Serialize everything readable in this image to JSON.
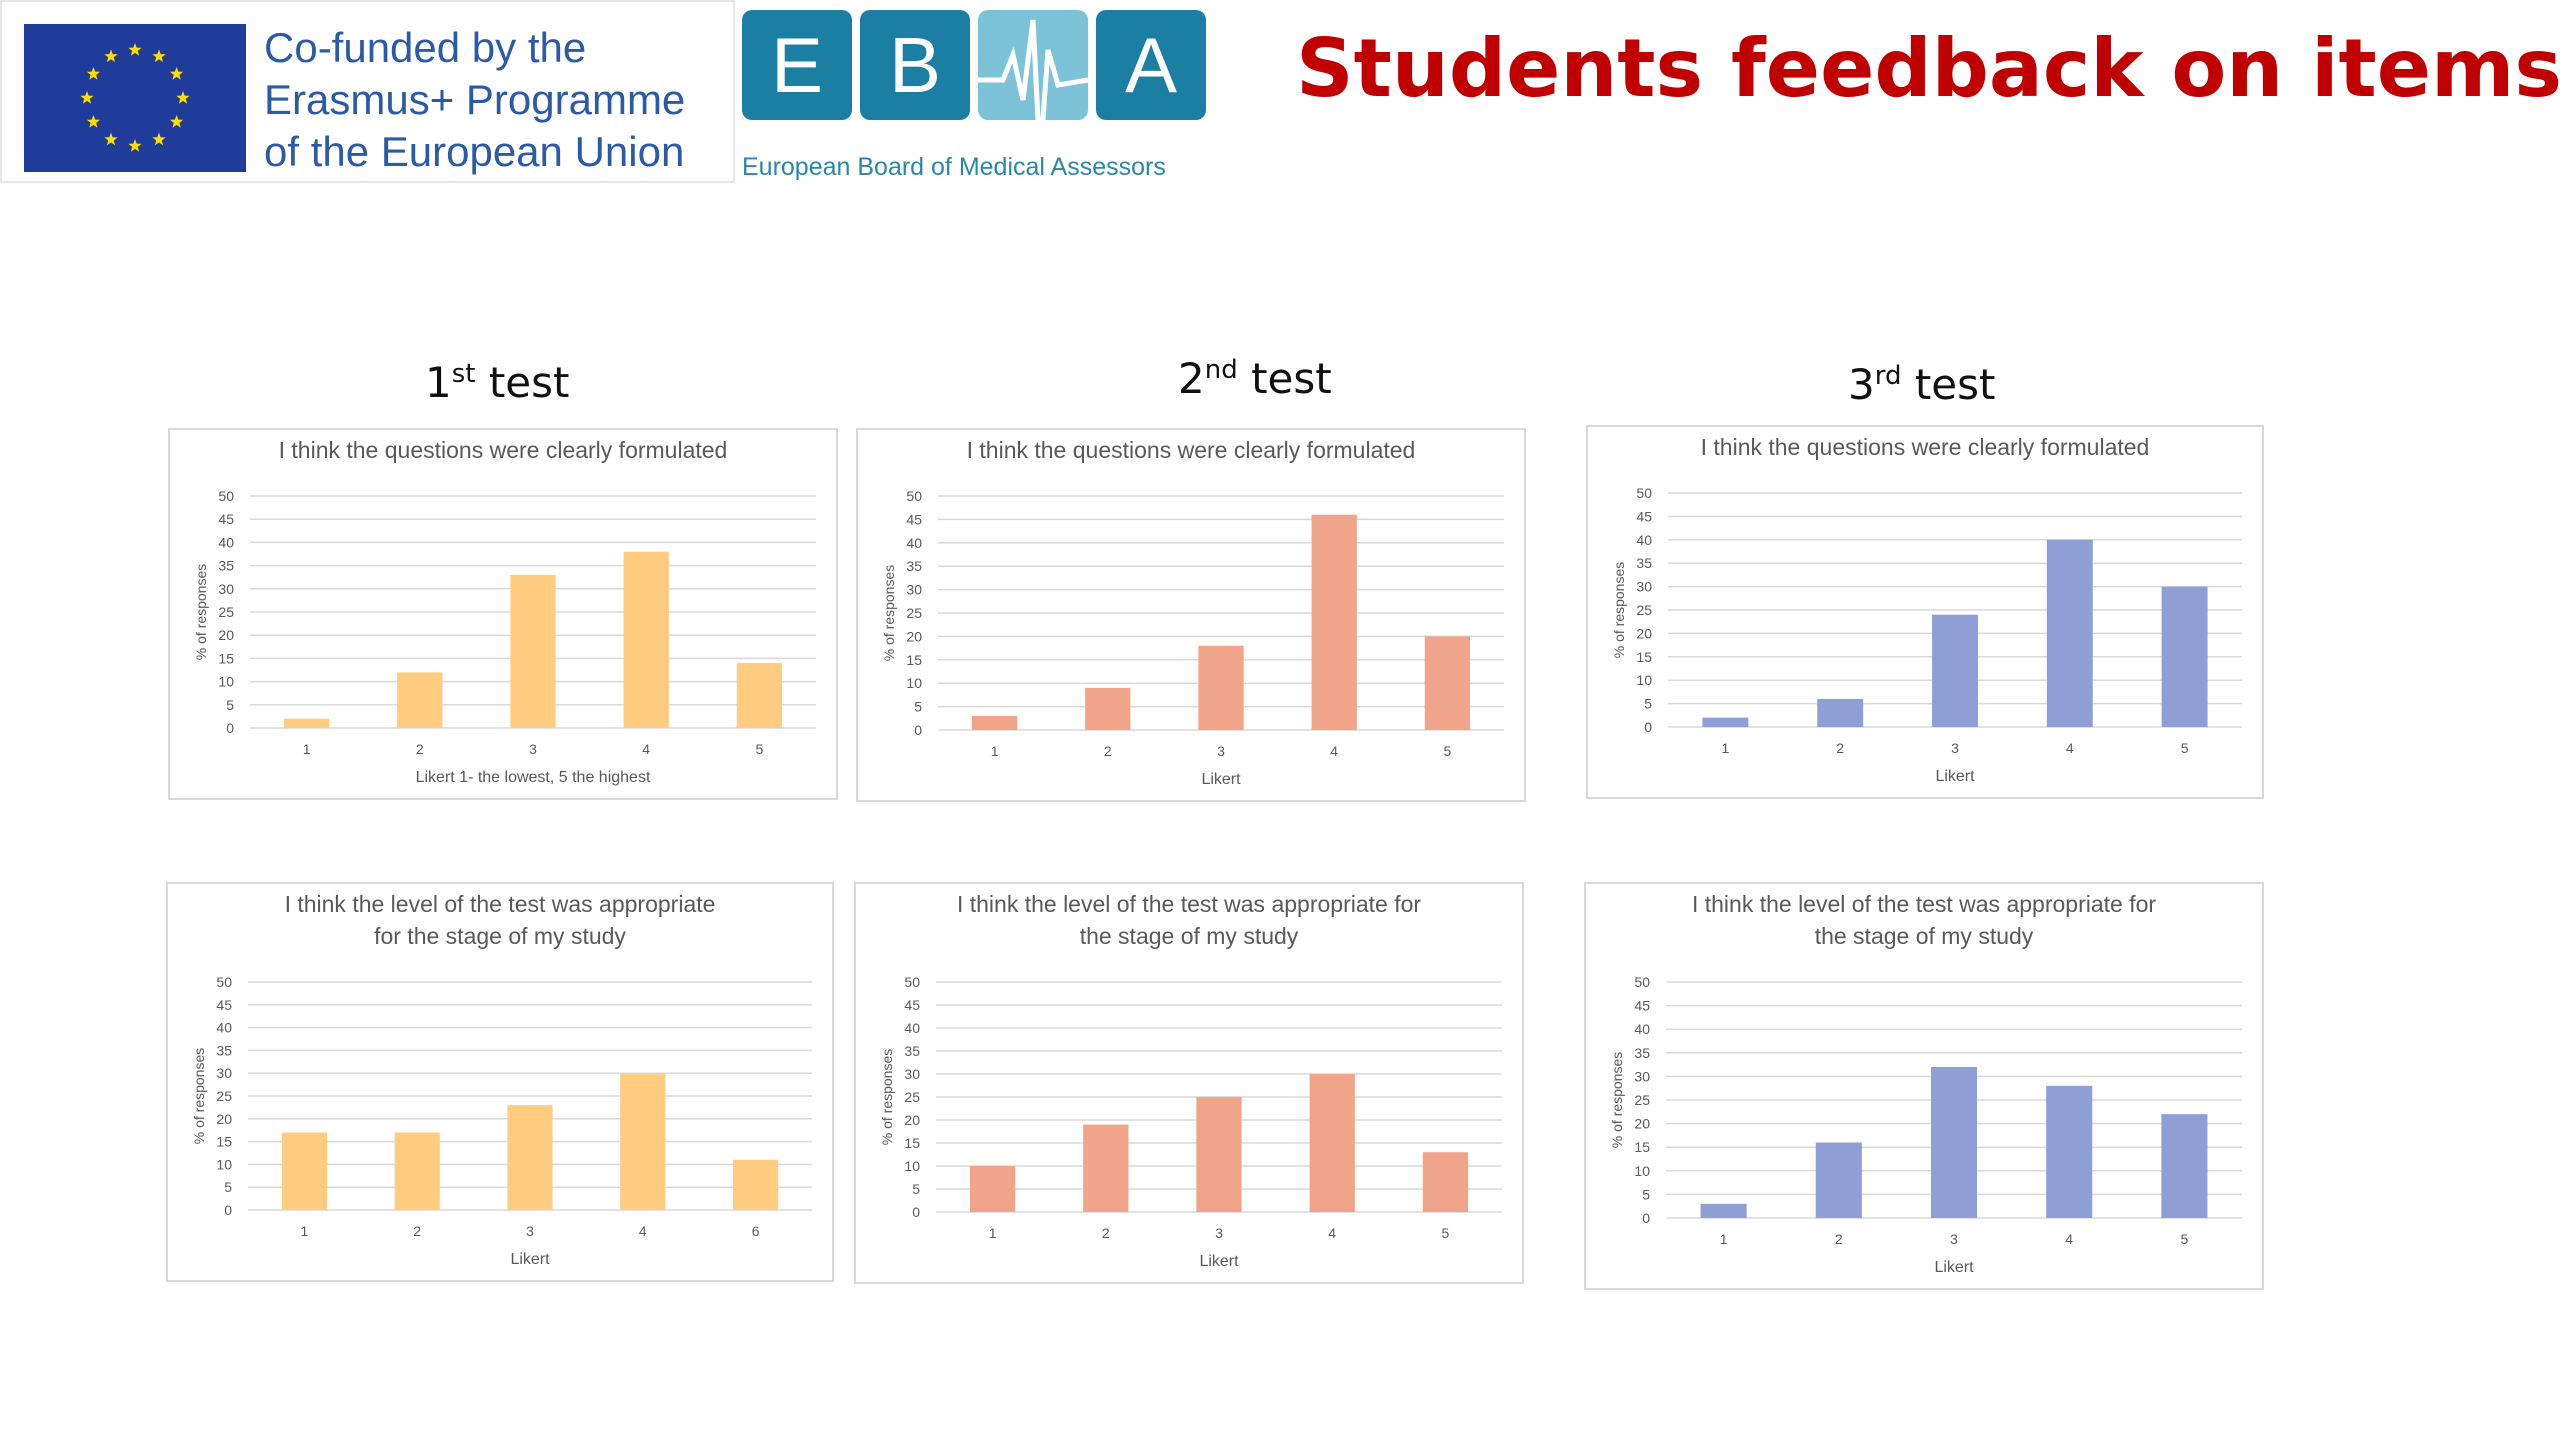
{
  "header": {
    "eu_logo": {
      "lines": [
        "Co-funded by the",
        "Erasmus+ Programme",
        "of the European Union"
      ]
    },
    "ebma_logo": {
      "letters": [
        "E",
        "B",
        "",
        "A"
      ],
      "subtitle": "European Board of Medical Assessors"
    },
    "title": "Students feedback on items"
  },
  "tests": [
    {
      "number": "1",
      "suffix": "st",
      "label": "test"
    },
    {
      "number": "2",
      "suffix": "nd",
      "label": "test"
    },
    {
      "number": "3",
      "suffix": "rd",
      "label": "test"
    }
  ],
  "colors": {
    "test1": "#ffcc80",
    "test2": "#f0a58a",
    "test3": "#8e9fd6",
    "title_red": "#c00000",
    "eu_blue": "#1f3c9b",
    "eu_star": "#ffdd00",
    "ebma_blue": "#1a7fa3",
    "ebma_light": "#7cc3d8",
    "gridline": "#d9d9d9",
    "axis_text": "#595959"
  },
  "chart_data": [
    {
      "id": "t1-clarity",
      "type": "bar",
      "title": [
        "I think the questions were clearly formulated"
      ],
      "xlabel": "Likert 1- the lowest, 5 the highest",
      "ylabel": "% of responses",
      "categories": [
        "1",
        "2",
        "3",
        "4",
        "5"
      ],
      "values": [
        2,
        12,
        33,
        38,
        14
      ],
      "ylim": [
        0,
        50
      ],
      "yticks": [
        "0",
        "5",
        "10",
        "15",
        "20",
        "25",
        "30",
        "35",
        "40",
        "45",
        "50"
      ],
      "grid": true
    },
    {
      "id": "t2-clarity",
      "type": "bar",
      "title": [
        "I think the questions were clearly formulated"
      ],
      "xlabel": "Likert",
      "ylabel": "% of responses",
      "categories": [
        "1",
        "2",
        "3",
        "4",
        "5"
      ],
      "values": [
        3,
        9,
        18,
        46,
        20
      ],
      "ylim": [
        0,
        50
      ],
      "yticks": [
        "0",
        "5",
        "10",
        "15",
        "20",
        "25",
        "30",
        "35",
        "40",
        "45",
        "50"
      ],
      "grid": true
    },
    {
      "id": "t3-clarity",
      "type": "bar",
      "title": [
        "I think the questions were clearly formulated"
      ],
      "xlabel": "Likert",
      "ylabel": "% of responses",
      "categories": [
        "1",
        "2",
        "3",
        "4",
        "5"
      ],
      "values": [
        2,
        6,
        24,
        40,
        30
      ],
      "ylim": [
        0,
        50
      ],
      "yticks": [
        "0",
        "5",
        "10",
        "15",
        "20",
        "25",
        "30",
        "35",
        "40",
        "45",
        "50"
      ],
      "grid": true
    },
    {
      "id": "t1-level",
      "type": "bar",
      "title": [
        "I think the level of the test was appropriate",
        "for the stage of my study"
      ],
      "xlabel": "Likert",
      "ylabel": "% of responses",
      "categories": [
        "1",
        "2",
        "3",
        "4",
        "6"
      ],
      "values": [
        17,
        17,
        23,
        30,
        11
      ],
      "ylim": [
        0,
        50
      ],
      "yticks": [
        "0",
        "5",
        "10",
        "15",
        "20",
        "25",
        "30",
        "35",
        "40",
        "45",
        "50"
      ],
      "grid": true
    },
    {
      "id": "t2-level",
      "type": "bar",
      "title": [
        "I think the level of the test was appropriate for",
        "the stage of my study"
      ],
      "xlabel": "Likert",
      "ylabel": "% of responses",
      "categories": [
        "1",
        "2",
        "3",
        "4",
        "5"
      ],
      "values": [
        10,
        19,
        25,
        30,
        13
      ],
      "ylim": [
        0,
        50
      ],
      "yticks": [
        "0",
        "5",
        "10",
        "15",
        "20",
        "25",
        "30",
        "35",
        "40",
        "45",
        "50"
      ],
      "grid": true
    },
    {
      "id": "t3-level",
      "type": "bar",
      "title": [
        "I think the level of the test was appropriate for",
        "the stage of my study"
      ],
      "xlabel": "Likert",
      "ylabel": "% of responses",
      "categories": [
        "1",
        "2",
        "3",
        "4",
        "5"
      ],
      "values": [
        3,
        16,
        32,
        28,
        22
      ],
      "ylim": [
        0,
        50
      ],
      "yticks": [
        "0",
        "5",
        "10",
        "15",
        "20",
        "25",
        "30",
        "35",
        "40",
        "45",
        "50"
      ],
      "grid": true
    }
  ]
}
